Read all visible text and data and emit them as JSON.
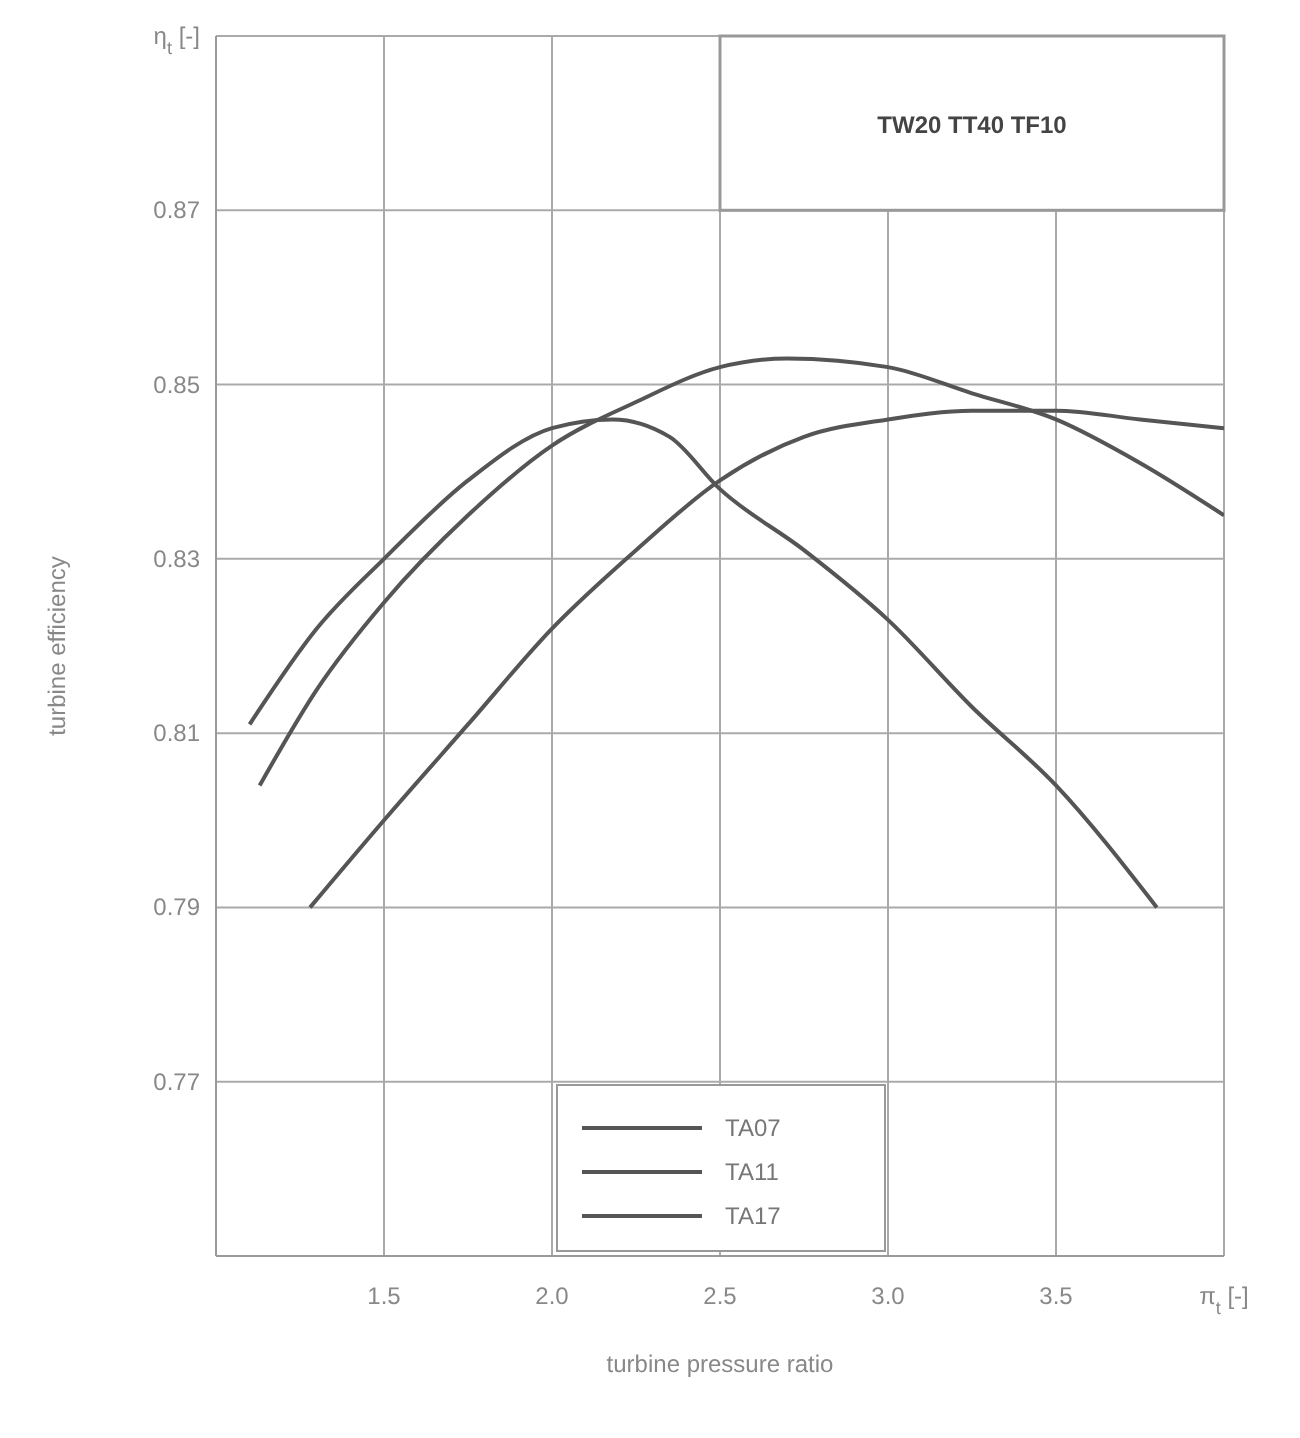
{
  "chart_data": {
    "type": "line",
    "xlabel": "turbine pressure ratio",
    "ylabel": "turbine efficiency",
    "annotations": [
      "TW20 TT40 TF10"
    ],
    "xlim": [
      1.0,
      4.0
    ],
    "xticks": [
      1.5,
      {
        "value": 2,
        "label": "2.0"
      },
      2.5,
      {
        "value": 3,
        "label": "3.0"
      },
      3.5,
      {
        "value": 4.0,
        "label": "π$_{t}$ [-]"
      }
    ],
    "ylim": [
      0.75,
      0.89
    ],
    "yticks": [
      0.77,
      0.79,
      0.81,
      0.83,
      0.85,
      0.87,
      {
        "value": 0.89,
        "label": "η$_{t}$ [-]"
      }
    ],
    "grid": true,
    "legend": "bottom",
    "marker": "none",
    "line_style": "solid",
    "series": [
      {
        "name": "TA07",
        "color": "#555555",
        "x": [
          1.1,
          1.3,
          1.5,
          1.75,
          2.0,
          2.18,
          2.35,
          2.5,
          2.75,
          3.0,
          3.25,
          3.5,
          3.8
        ],
        "values": [
          0.811,
          0.822,
          0.83,
          0.839,
          0.845,
          0.846,
          0.844,
          0.838,
          0.831,
          0.823,
          0.813,
          0.804,
          0.79
        ]
      },
      {
        "name": "TA11",
        "color": "#555555",
        "x": [
          1.13,
          1.3,
          1.5,
          1.75,
          2.0,
          2.25,
          2.5,
          2.7,
          3.0,
          3.25,
          3.5,
          3.75,
          4.0
        ],
        "values": [
          0.804,
          0.815,
          0.825,
          0.835,
          0.843,
          0.848,
          0.852,
          0.853,
          0.852,
          0.849,
          0.846,
          0.841,
          0.835
        ]
      },
      {
        "name": "TA17",
        "color": "#555555",
        "x": [
          1.28,
          1.5,
          1.75,
          2.0,
          2.25,
          2.5,
          2.75,
          3.0,
          3.25,
          3.5,
          3.75,
          4.0
        ],
        "values": [
          0.79,
          0.8,
          0.811,
          0.822,
          0.831,
          0.839,
          0.844,
          0.846,
          0.847,
          0.847,
          0.846,
          0.845
        ]
      }
    ]
  }
}
